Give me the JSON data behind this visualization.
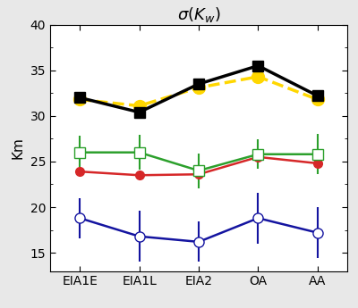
{
  "categories": [
    "EIA1E",
    "EIA1L",
    "EIA2",
    "OA",
    "AA"
  ],
  "title": "$\\sigma(K_w)$",
  "ylabel": "Km",
  "ylim": [
    13,
    40
  ],
  "yticks": [
    15,
    20,
    25,
    30,
    35,
    40
  ],
  "series": {
    "black_solid": {
      "values": [
        32.0,
        30.4,
        33.5,
        35.5,
        32.2
      ],
      "color": "#000000",
      "linestyle": "-",
      "marker": "s",
      "markerfacecolor": "#000000",
      "linewidth": 2.5,
      "markersize": 8,
      "zorder": 5
    },
    "yellow_dashed": {
      "values": [
        31.8,
        31.1,
        33.1,
        34.3,
        31.8
      ],
      "color": "#FFD700",
      "linestyle": "--",
      "marker": "o",
      "markerfacecolor": "#FFD700",
      "linewidth": 2.5,
      "markersize": 10,
      "zorder": 4
    },
    "green_open_square": {
      "values": [
        26.0,
        26.0,
        24.0,
        25.8,
        25.8
      ],
      "errors": [
        1.8,
        1.9,
        1.9,
        1.6,
        2.2
      ],
      "color": "#2ca02c",
      "linestyle": "-",
      "marker": "s",
      "markerfacecolor": "white",
      "linewidth": 1.8,
      "markersize": 8,
      "zorder": 3
    },
    "red_solid": {
      "values": [
        23.9,
        23.5,
        23.6,
        25.5,
        24.8
      ],
      "color": "#d62728",
      "linestyle": "-",
      "marker": "o",
      "markerfacecolor": "#d62728",
      "linewidth": 1.8,
      "markersize": 7,
      "zorder": 3
    },
    "blue_open_circle": {
      "values": [
        18.8,
        16.8,
        16.2,
        18.8,
        17.2
      ],
      "errors": [
        2.2,
        2.8,
        2.2,
        2.8,
        2.8
      ],
      "color": "#1414a0",
      "linestyle": "-",
      "marker": "o",
      "markerfacecolor": "white",
      "linewidth": 1.8,
      "markersize": 8,
      "zorder": 3
    }
  },
  "background_color": "#ffffff",
  "fig_background": "#e8e8e8",
  "title_fontsize": 13,
  "tick_fontsize": 10,
  "label_fontsize": 11
}
